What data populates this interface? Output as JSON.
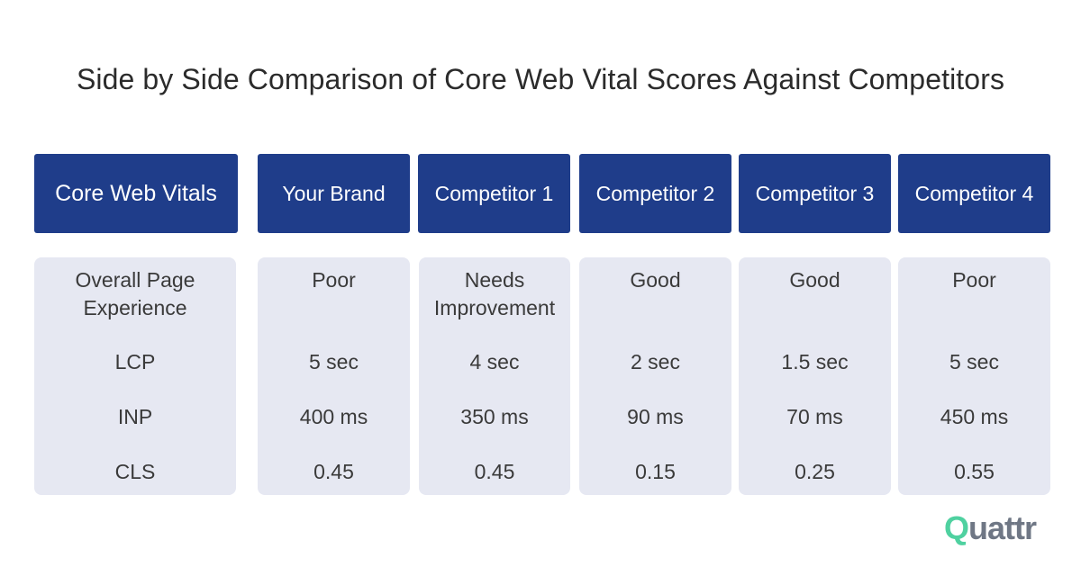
{
  "title": "Side by Side Comparison of Core Web Vital Scores Against Competitors",
  "chart_data": {
    "type": "table",
    "columns": [
      "Core Web Vitals",
      "Your Brand",
      "Competitor 1",
      "Competitor 2",
      "Competitor 3",
      "Competitor 4"
    ],
    "rows": [
      [
        "Overall Page Experience",
        "Poor",
        "Needs Improvement",
        "Good",
        "Good",
        "Poor"
      ],
      [
        "LCP",
        "5 sec",
        "4 sec",
        "2 sec",
        "1.5 sec",
        "5 sec"
      ],
      [
        "INP",
        "400 ms",
        "350 ms",
        "90 ms",
        "70 ms",
        "450 ms"
      ],
      [
        "CLS",
        "0.45",
        "0.45",
        "0.15",
        "0.25",
        "0.55"
      ]
    ]
  },
  "logo": {
    "q": "Q",
    "rest": "uattr"
  },
  "colors": {
    "header_bg": "#1f3d8a",
    "cell_bg": "#e6e8f2",
    "logo_accent": "#4fd1a0",
    "logo_text": "#6f7785"
  }
}
